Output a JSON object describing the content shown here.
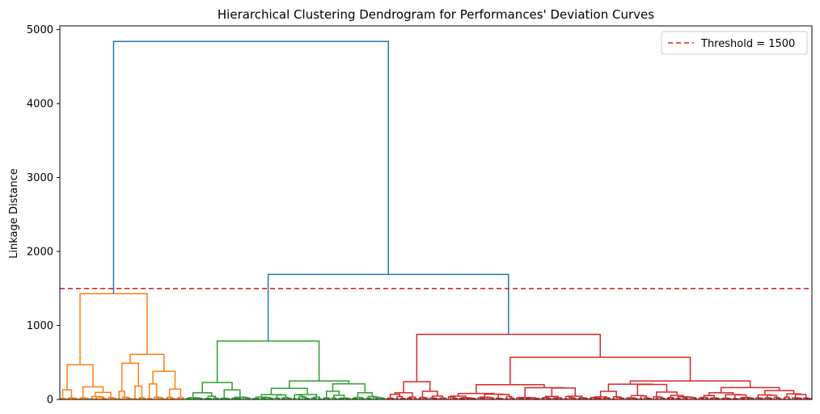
{
  "chart_data": {
    "type": "dendrogram",
    "title": "Hierarchical Clustering Dendrogram for Performances' Deviation Curves",
    "xlabel": "",
    "ylabel": "Linkage Distance",
    "ylim": [
      0,
      5050
    ],
    "yticks": [
      0,
      1000,
      2000,
      3000,
      4000,
      5000
    ],
    "ytick_labels": [
      "0",
      "1000",
      "2000",
      "3000",
      "4000",
      "5000"
    ],
    "threshold": {
      "value": 1500,
      "label": "Threshold = 1500",
      "color": "#d62728"
    },
    "legend": {
      "position": "top-right",
      "entries": [
        "Threshold = 1500"
      ]
    },
    "grid": false,
    "leaf_count": 330,
    "colors": {
      "above_threshold": "#1f77b4",
      "cluster_1": "#ff7f0e",
      "cluster_2": "#2ca02c",
      "cluster_3": "#d62728"
    },
    "clusters": [
      {
        "color": "cluster_1",
        "leaf_range": [
          0,
          55
        ],
        "merge_height": 1430,
        "sub_merges": [
          {
            "range": [
              0,
              25
            ],
            "height": 470
          },
          {
            "range": [
              25,
              55
            ],
            "height": 610
          },
          {
            "range": [
              0,
              8
            ],
            "height": 130
          },
          {
            "range": [
              8,
              25
            ],
            "height": 170
          },
          {
            "range": [
              25,
              38
            ],
            "height": 490
          },
          {
            "range": [
              38,
              55
            ],
            "height": 380
          },
          {
            "range": [
              25,
              32
            ],
            "height": 110
          },
          {
            "range": [
              32,
              38
            ],
            "height": 180
          },
          {
            "range": [
              38,
              46
            ],
            "height": 210
          },
          {
            "range": [
              46,
              55
            ],
            "height": 140
          }
        ]
      },
      {
        "color": "cluster_2",
        "leaf_range": [
          55,
          143
        ],
        "merge_height": 790,
        "sub_merges": [
          {
            "range": [
              55,
              84
            ],
            "height": 230
          },
          {
            "range": [
              84,
              143
            ],
            "height": 250
          },
          {
            "range": [
              55,
              70
            ],
            "height": 90
          },
          {
            "range": [
              70,
              84
            ],
            "height": 130
          },
          {
            "range": [
              84,
              115
            ],
            "height": 150
          },
          {
            "range": [
              115,
              143
            ],
            "height": 210
          },
          {
            "range": [
              115,
              128
            ],
            "height": 110
          },
          {
            "range": [
              128,
              143
            ],
            "height": 90
          }
        ]
      },
      {
        "color": "cluster_3",
        "leaf_range": [
          143,
          330
        ],
        "merge_height": 880,
        "sub_merges": [
          {
            "range": [
              143,
              170
            ],
            "height": 240
          },
          {
            "range": [
              170,
              330
            ],
            "height": 570
          },
          {
            "range": [
              143,
              157
            ],
            "height": 90
          },
          {
            "range": [
              157,
              170
            ],
            "height": 110
          },
          {
            "range": [
              170,
              232
            ],
            "height": 200
          },
          {
            "range": [
              232,
              330
            ],
            "height": 250
          },
          {
            "range": [
              170,
              200
            ],
            "height": 80
          },
          {
            "range": [
              200,
              232
            ],
            "height": 130
          },
          {
            "range": [
              232,
              280
            ],
            "height": 140
          },
          {
            "range": [
              280,
              330
            ],
            "height": 160
          },
          {
            "range": [
              280,
              305
            ],
            "height": 90
          },
          {
            "range": [
              305,
              330
            ],
            "height": 120
          }
        ]
      }
    ],
    "top_links": [
      {
        "merge": "clusters 2+3",
        "height": 1690
      },
      {
        "merge": "cluster 1 + (2+3)",
        "height": 4840
      }
    ]
  }
}
